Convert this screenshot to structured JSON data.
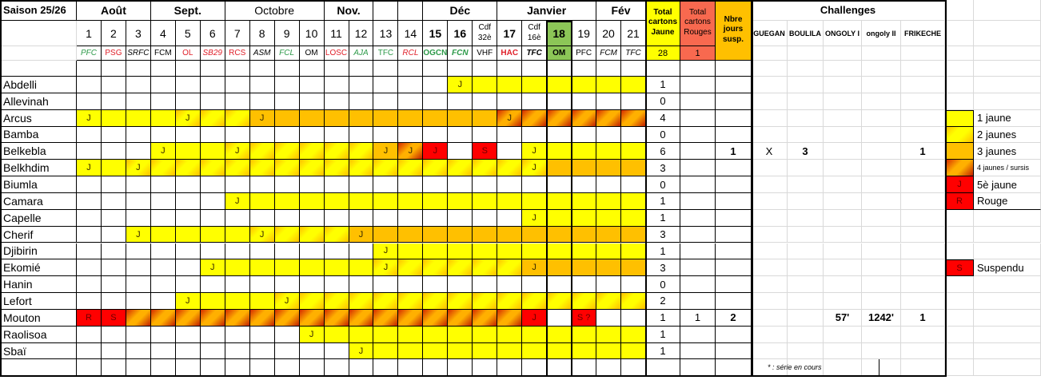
{
  "title": "Saison 25/26",
  "months": [
    "Août",
    "Sept.",
    "Octobre",
    "Nov.",
    "Déc",
    "Janvier",
    "Fév"
  ],
  "matches": [
    {
      "num": "1",
      "team": "PFC",
      "color": "#2e9a4a",
      "style": "i"
    },
    {
      "num": "2",
      "team": "PSG",
      "color": "#e0202a",
      "style": ""
    },
    {
      "num": "3",
      "team": "SRFC",
      "color": "#000000",
      "style": "i"
    },
    {
      "num": "4",
      "team": "FCM",
      "color": "#000000",
      "style": ""
    },
    {
      "num": "5",
      "team": "OL",
      "color": "#e0202a",
      "style": ""
    },
    {
      "num": "6",
      "team": "SB29",
      "color": "#e0202a",
      "style": "i"
    },
    {
      "num": "7",
      "team": "RCS",
      "color": "#e0202a",
      "style": ""
    },
    {
      "num": "8",
      "team": "ASM",
      "color": "#000000",
      "style": "i"
    },
    {
      "num": "9",
      "team": "FCL",
      "color": "#2e9a4a",
      "style": "i"
    },
    {
      "num": "10",
      "team": "OM",
      "color": "#000000",
      "style": ""
    },
    {
      "num": "11",
      "team": "LOSC",
      "color": "#e0202a",
      "style": ""
    },
    {
      "num": "12",
      "team": "AJA",
      "color": "#2e9a4a",
      "style": "i"
    },
    {
      "num": "13",
      "team": "TFC",
      "color": "#2e9a4a",
      "style": ""
    },
    {
      "num": "14",
      "team": "RCL",
      "color": "#e0202a",
      "style": "i"
    },
    {
      "num": "15",
      "team": "OGCN",
      "color": "#2e9a4a",
      "style": "b"
    },
    {
      "num": "16",
      "team": "FCN",
      "color": "#2e9a4a",
      "style": "bi"
    },
    {
      "num": "Cdf 32è",
      "team": "VHF",
      "color": "#000000",
      "style": "",
      "cup": true
    },
    {
      "num": "17",
      "team": "HAC",
      "color": "#e0202a",
      "style": "b"
    },
    {
      "num": "Cdf 16è",
      "team": "TFC",
      "color": "#000000",
      "style": "bi",
      "cup": true
    },
    {
      "num": "18",
      "team": "OM",
      "color": "#000000",
      "style": "b",
      "current": true
    },
    {
      "num": "19",
      "team": "PFC",
      "color": "#000000",
      "style": ""
    },
    {
      "num": "20",
      "team": "FCM",
      "color": "#000000",
      "style": "i"
    },
    {
      "num": "21",
      "team": "TFC",
      "color": "#000000",
      "style": "i"
    }
  ],
  "totals": {
    "yellow_header": "Total cartons Jaune",
    "red_header": "Total cartons Rouges",
    "susp_header": "Nbre jours susp.",
    "yellow_total": "28",
    "red_total": "1",
    "yellow_color": "#ffff00",
    "red_color": "#f8694f",
    "susp_color": "#ffc000",
    "current_match_color": "#8cc657"
  },
  "challenges": {
    "title": "Challenges",
    "columns": [
      "GUEGAN",
      "BOULILA",
      "ONGOLY I",
      "ongoly II",
      "FRIKECHE"
    ],
    "footnote": "* : série en cours"
  },
  "legend": [
    {
      "fill": "y",
      "mark": "",
      "label": "1 jaune"
    },
    {
      "fill": "g",
      "mark": "",
      "label": "2 jaunes"
    },
    {
      "fill": "o",
      "mark": "",
      "label": "3 jaunes"
    },
    {
      "fill": "r",
      "mark": "",
      "label": "4 jaunes / sursis"
    },
    {
      "fill": "R",
      "mark": "J",
      "label": "5è jaune"
    },
    {
      "fill": "R",
      "mark": "R",
      "label": "Rouge"
    },
    {
      "fill": "R",
      "mark": "S",
      "label": "Suspendu"
    }
  ],
  "players": [
    {
      "name": "Abdelli",
      "fills": "...............yyyyyyyy",
      "marks": {
        "15": "J"
      },
      "yellow": "1",
      "red": "",
      "susp": "",
      "ch": [
        "",
        "",
        "",
        "",
        ""
      ]
    },
    {
      "name": "Allevinah",
      "fills": ".......................",
      "marks": {},
      "yellow": "0",
      "red": "",
      "susp": "",
      "ch": [
        "",
        "",
        "",
        "",
        ""
      ]
    },
    {
      "name": "Arcus",
      "fills": "yyyygggoooooooooorrrrrr",
      "marks": {
        "0": "J",
        "4": "J",
        "7": "J",
        "17": "J"
      },
      "yellow": "4",
      "red": "",
      "susp": "",
      "ch": [
        "",
        "",
        "",
        "",
        ""
      ]
    },
    {
      "name": "Bamba",
      "fills": ".......................",
      "marks": {},
      "yellow": "0",
      "red": "",
      "susp": "",
      "ch": [
        "",
        "",
        "",
        "",
        ""
      ]
    },
    {
      "name": "Belkebla",
      "fills": "...yyyggggggorR.R.yyyyy",
      "marks": {
        "3": "J",
        "6": "J",
        "12": "J",
        "13": "J",
        "14": "J",
        "16": "S",
        "18": "J"
      },
      "yellow": "6",
      "red": "",
      "susp": "1",
      "ch": [
        "X",
        "3",
        "",
        "",
        "1"
      ]
    },
    {
      "name": "Belkhdim",
      "fills": "yygggggggggggggggggoooo",
      "marks": {
        "0": "J",
        "2": "J",
        "18": "J"
      },
      "yellow": "3",
      "red": "",
      "susp": "",
      "ch": [
        "",
        "",
        "",
        "",
        ""
      ]
    },
    {
      "name": "Biumla",
      "fills": ".......................",
      "marks": {},
      "yellow": "0",
      "red": "",
      "susp": "",
      "ch": [
        "",
        "",
        "",
        "",
        ""
      ]
    },
    {
      "name": "Camara",
      "fills": "......yyyyyyyyyyyyyyyyy",
      "marks": {
        "6": "J"
      },
      "yellow": "1",
      "red": "",
      "susp": "",
      "ch": [
        "",
        "",
        "",
        "",
        ""
      ]
    },
    {
      "name": "Capelle",
      "fills": "..................yyyyy",
      "marks": {
        "18": "J"
      },
      "yellow": "1",
      "red": "",
      "susp": "",
      "ch": [
        "",
        "",
        "",
        "",
        ""
      ]
    },
    {
      "name": "Cherif",
      "fills": "..yyyyyggggoooooooooooo",
      "marks": {
        "2": "J",
        "7": "J",
        "11": "J"
      },
      "yellow": "3",
      "red": "",
      "susp": "",
      "ch": [
        "",
        "",
        "",
        "",
        ""
      ]
    },
    {
      "name": "Djibirin",
      "fills": "............yyyyyyyyyyy",
      "marks": {
        "12": "J"
      },
      "yellow": "1",
      "red": "",
      "susp": "",
      "ch": [
        "",
        "",
        "",
        "",
        ""
      ]
    },
    {
      "name": "Ekomié",
      "fills": ".....yyyyyyyggggggooooo",
      "marks": {
        "5": "J",
        "12": "J",
        "18": "J"
      },
      "yellow": "3",
      "red": "",
      "susp": "",
      "ch": [
        "",
        "",
        "",
        "",
        ""
      ]
    },
    {
      "name": "Hanin",
      "fills": ".......................",
      "marks": {},
      "yellow": "0",
      "red": "",
      "susp": "",
      "ch": [
        "",
        "",
        "",
        "",
        ""
      ]
    },
    {
      "name": "Lefort",
      "fills": "....yyyyggggggggggggggg",
      "marks": {
        "4": "J",
        "8": "J"
      },
      "yellow": "2",
      "red": "",
      "susp": "",
      "ch": [
        "",
        "",
        "",
        "",
        ""
      ]
    },
    {
      "name": "Mouton",
      "fills": "RRrrrrrrrrrrrrrrrrR.R..",
      "marks": {
        "0": "R",
        "1": "S",
        "18": "J",
        "20": "S ?"
      },
      "yellow": "1",
      "red": "1",
      "susp": "2",
      "ch": [
        "",
        "",
        "57'",
        "1242'",
        "1"
      ]
    },
    {
      "name": "Raolisoa",
      "fills": ".........yyyyyyyyyyyyyy",
      "marks": {
        "9": "J"
      },
      "yellow": "1",
      "red": "",
      "susp": "",
      "ch": [
        "",
        "",
        "",
        "",
        ""
      ]
    },
    {
      "name": "Sbaï",
      "fills": "...........yyyyyyyyyyyy",
      "marks": {
        "11": "J"
      },
      "yellow": "1",
      "red": "",
      "susp": "",
      "ch": [
        "",
        "",
        "",
        "",
        ""
      ]
    }
  ]
}
